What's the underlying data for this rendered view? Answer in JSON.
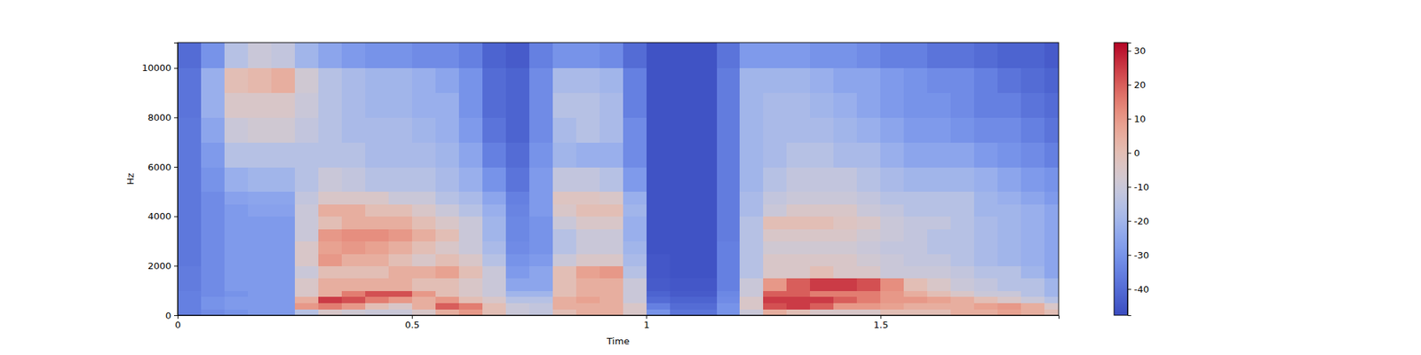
{
  "chart_data": {
    "type": "heatmap",
    "x_label": "Time",
    "y_label": "Hz",
    "xlim": [
      0,
      1.88
    ],
    "ylim": [
      0,
      11025
    ],
    "xticks": [
      0,
      0.5,
      1,
      1.5
    ],
    "yticks": [
      0,
      2000,
      4000,
      6000,
      8000,
      10000
    ],
    "x_bins": [
      0,
      0.05,
      0.1,
      0.15,
      0.2,
      0.25,
      0.3,
      0.35,
      0.4,
      0.45,
      0.5,
      0.55,
      0.6,
      0.65,
      0.7,
      0.75,
      0.8,
      0.85,
      0.9,
      0.95,
      1.0,
      1.05,
      1.1,
      1.15,
      1.2,
      1.25,
      1.3,
      1.35,
      1.4,
      1.45,
      1.5,
      1.55,
      1.6,
      1.65,
      1.7,
      1.75,
      1.8,
      1.85,
      1.88
    ],
    "y_bins": [
      0,
      250,
      500,
      750,
      1000,
      1500,
      2000,
      2500,
      3000,
      3500,
      4000,
      4500,
      5000,
      6000,
      7000,
      8000,
      9000,
      10000,
      11025
    ],
    "values": [
      [
        -35,
        -32,
        -30,
        -28,
        -28,
        -15,
        -5,
        -8,
        -10,
        -10,
        -5,
        5,
        10,
        0,
        -10,
        -12,
        0,
        5,
        5,
        -5,
        -30,
        -38,
        -38,
        -30,
        -10,
        5,
        0,
        -5,
        -5,
        -5,
        0,
        0,
        0,
        5,
        5,
        8,
        5,
        0
      ],
      [
        -35,
        -30,
        -28,
        -28,
        -28,
        10,
        15,
        10,
        0,
        -5,
        5,
        20,
        15,
        0,
        -10,
        -12,
        5,
        5,
        5,
        -5,
        -35,
        -40,
        -40,
        -30,
        -5,
        22,
        25,
        20,
        10,
        10,
        8,
        5,
        5,
        5,
        8,
        10,
        5,
        -5
      ],
      [
        -35,
        -30,
        -28,
        -28,
        -28,
        5,
        25,
        22,
        15,
        10,
        5,
        10,
        0,
        -5,
        -15,
        -15,
        5,
        8,
        5,
        -10,
        -40,
        -42,
        -42,
        -32,
        -5,
        25,
        25,
        25,
        20,
        15,
        10,
        10,
        8,
        5,
        0,
        -5,
        -10,
        -15
      ],
      [
        -35,
        -32,
        -30,
        -28,
        -28,
        -5,
        5,
        15,
        22,
        22,
        10,
        0,
        -5,
        -10,
        -20,
        -20,
        0,
        5,
        5,
        -10,
        -42,
        -44,
        -44,
        -33,
        -10,
        20,
        20,
        15,
        15,
        15,
        10,
        5,
        0,
        -5,
        -10,
        -10,
        -15,
        -20
      ],
      [
        -36,
        -32,
        -28,
        -28,
        -28,
        -5,
        5,
        5,
        5,
        5,
        0,
        0,
        -5,
        -10,
        -25,
        -25,
        0,
        5,
        5,
        -10,
        -44,
        -45,
        -45,
        -35,
        -10,
        10,
        20,
        25,
        25,
        22,
        12,
        0,
        -5,
        -10,
        -12,
        -15,
        -15,
        -20
      ],
      [
        -36,
        -32,
        -28,
        -28,
        -28,
        -10,
        0,
        0,
        0,
        5,
        5,
        8,
        0,
        -10,
        -28,
        -25,
        0,
        8,
        10,
        -15,
        -45,
        -46,
        -46,
        -35,
        -15,
        -5,
        -5,
        0,
        -5,
        -5,
        -10,
        -10,
        -10,
        -12,
        -15,
        -15,
        -20,
        -25
      ],
      [
        -37,
        -32,
        -28,
        -28,
        -28,
        -5,
        10,
        5,
        5,
        0,
        -5,
        0,
        -5,
        -15,
        -30,
        -28,
        -10,
        -5,
        -5,
        -18,
        -45,
        -46,
        -46,
        -35,
        -15,
        -5,
        -5,
        -5,
        -5,
        -8,
        -10,
        -12,
        -12,
        -15,
        -18,
        -20,
        -22,
        -25
      ],
      [
        -37,
        -32,
        -28,
        -28,
        -28,
        -5,
        8,
        10,
        8,
        5,
        0,
        -5,
        -10,
        -18,
        -32,
        -30,
        -15,
        -10,
        -10,
        -20,
        -46,
        -46,
        -46,
        -35,
        -15,
        -8,
        -8,
        -8,
        -8,
        -10,
        -12,
        -12,
        -15,
        -15,
        -18,
        -20,
        -22,
        -25
      ],
      [
        -37,
        -32,
        -28,
        -28,
        -28,
        -10,
        10,
        12,
        12,
        10,
        5,
        0,
        -10,
        -20,
        -33,
        -30,
        -15,
        -10,
        -10,
        -22,
        -46,
        -46,
        -46,
        -36,
        -15,
        -5,
        -5,
        -5,
        -5,
        -8,
        -10,
        -12,
        -15,
        -15,
        -18,
        -20,
        -22,
        -25
      ],
      [
        -37,
        -32,
        -28,
        -28,
        -28,
        -10,
        0,
        5,
        5,
        5,
        0,
        -5,
        -10,
        -20,
        -33,
        -30,
        -10,
        -5,
        -5,
        -22,
        -46,
        -46,
        -46,
        -36,
        -15,
        0,
        0,
        0,
        -3,
        -5,
        -10,
        -12,
        -12,
        -15,
        -18,
        -20,
        -22,
        -25
      ],
      [
        -37,
        -32,
        -28,
        -26,
        -26,
        -10,
        5,
        5,
        0,
        0,
        -5,
        -10,
        -15,
        -22,
        -34,
        -28,
        -5,
        0,
        0,
        -20,
        -46,
        -46,
        -46,
        -36,
        -18,
        -10,
        -5,
        -5,
        -5,
        -10,
        -12,
        -15,
        -15,
        -15,
        -20,
        -20,
        -22,
        -25
      ],
      [
        -37,
        -32,
        -26,
        -25,
        -25,
        -12,
        -5,
        -5,
        -5,
        -10,
        -10,
        -15,
        -18,
        -25,
        -35,
        -28,
        -3,
        -3,
        -5,
        -22,
        -46,
        -46,
        -46,
        -36,
        -18,
        -12,
        -10,
        -10,
        -10,
        -12,
        -15,
        -15,
        -15,
        -15,
        -20,
        -22,
        -25,
        -28
      ],
      [
        -37,
        -30,
        -22,
        -20,
        -20,
        -15,
        -10,
        -12,
        -15,
        -15,
        -15,
        -18,
        -22,
        -30,
        -38,
        -28,
        -12,
        -12,
        -15,
        -28,
        -46,
        -46,
        -46,
        -36,
        -20,
        -15,
        -12,
        -12,
        -12,
        -15,
        -18,
        -20,
        -20,
        -20,
        -22,
        -25,
        -28,
        -30
      ],
      [
        -37,
        -28,
        -15,
        -15,
        -15,
        -15,
        -15,
        -15,
        -18,
        -18,
        -18,
        -20,
        -25,
        -35,
        -40,
        -30,
        -20,
        -22,
        -22,
        -32,
        -46,
        -46,
        -46,
        -36,
        -20,
        -18,
        -15,
        -15,
        -18,
        -18,
        -22,
        -25,
        -25,
        -25,
        -28,
        -30,
        -32,
        -35
      ],
      [
        -37,
        -25,
        -10,
        -8,
        -8,
        -12,
        -15,
        -18,
        -18,
        -18,
        -20,
        -22,
        -28,
        -38,
        -42,
        -32,
        -18,
        -15,
        -18,
        -32,
        -46,
        -46,
        -46,
        -36,
        -20,
        -18,
        -18,
        -18,
        -20,
        -22,
        -25,
        -28,
        -28,
        -30,
        -32,
        -32,
        -35,
        -38
      ],
      [
        -38,
        -22,
        -5,
        -5,
        -5,
        -10,
        -15,
        -18,
        -20,
        -20,
        -22,
        -22,
        -30,
        -40,
        -42,
        -32,
        -15,
        -15,
        -18,
        -35,
        -46,
        -46,
        -46,
        -36,
        -20,
        -18,
        -18,
        -20,
        -22,
        -25,
        -28,
        -30,
        -30,
        -32,
        -35,
        -35,
        -38,
        -40
      ],
      [
        -38,
        -22,
        0,
        2,
        5,
        -8,
        -15,
        -18,
        -20,
        -20,
        -22,
        -25,
        -30,
        -40,
        -42,
        -32,
        -18,
        -18,
        -20,
        -35,
        -46,
        -46,
        -46,
        -36,
        -20,
        -20,
        -20,
        -22,
        -25,
        -25,
        -28,
        -30,
        -32,
        -32,
        -35,
        -38,
        -40,
        -42
      ],
      [
        -40,
        -30,
        -15,
        -10,
        -12,
        -20,
        -25,
        -28,
        -30,
        -30,
        -32,
        -32,
        -35,
        -42,
        -44,
        -35,
        -30,
        -30,
        -32,
        -40,
        -46,
        -46,
        -46,
        -38,
        -28,
        -28,
        -28,
        -30,
        -30,
        -32,
        -35,
        -35,
        -38,
        -38,
        -40,
        -42,
        -42,
        -44
      ]
    ],
    "colorbar": {
      "range": [
        -47.7,
        32.4
      ],
      "ticks": [
        -40,
        -30,
        -20,
        -10,
        0,
        10,
        20,
        30
      ]
    }
  }
}
